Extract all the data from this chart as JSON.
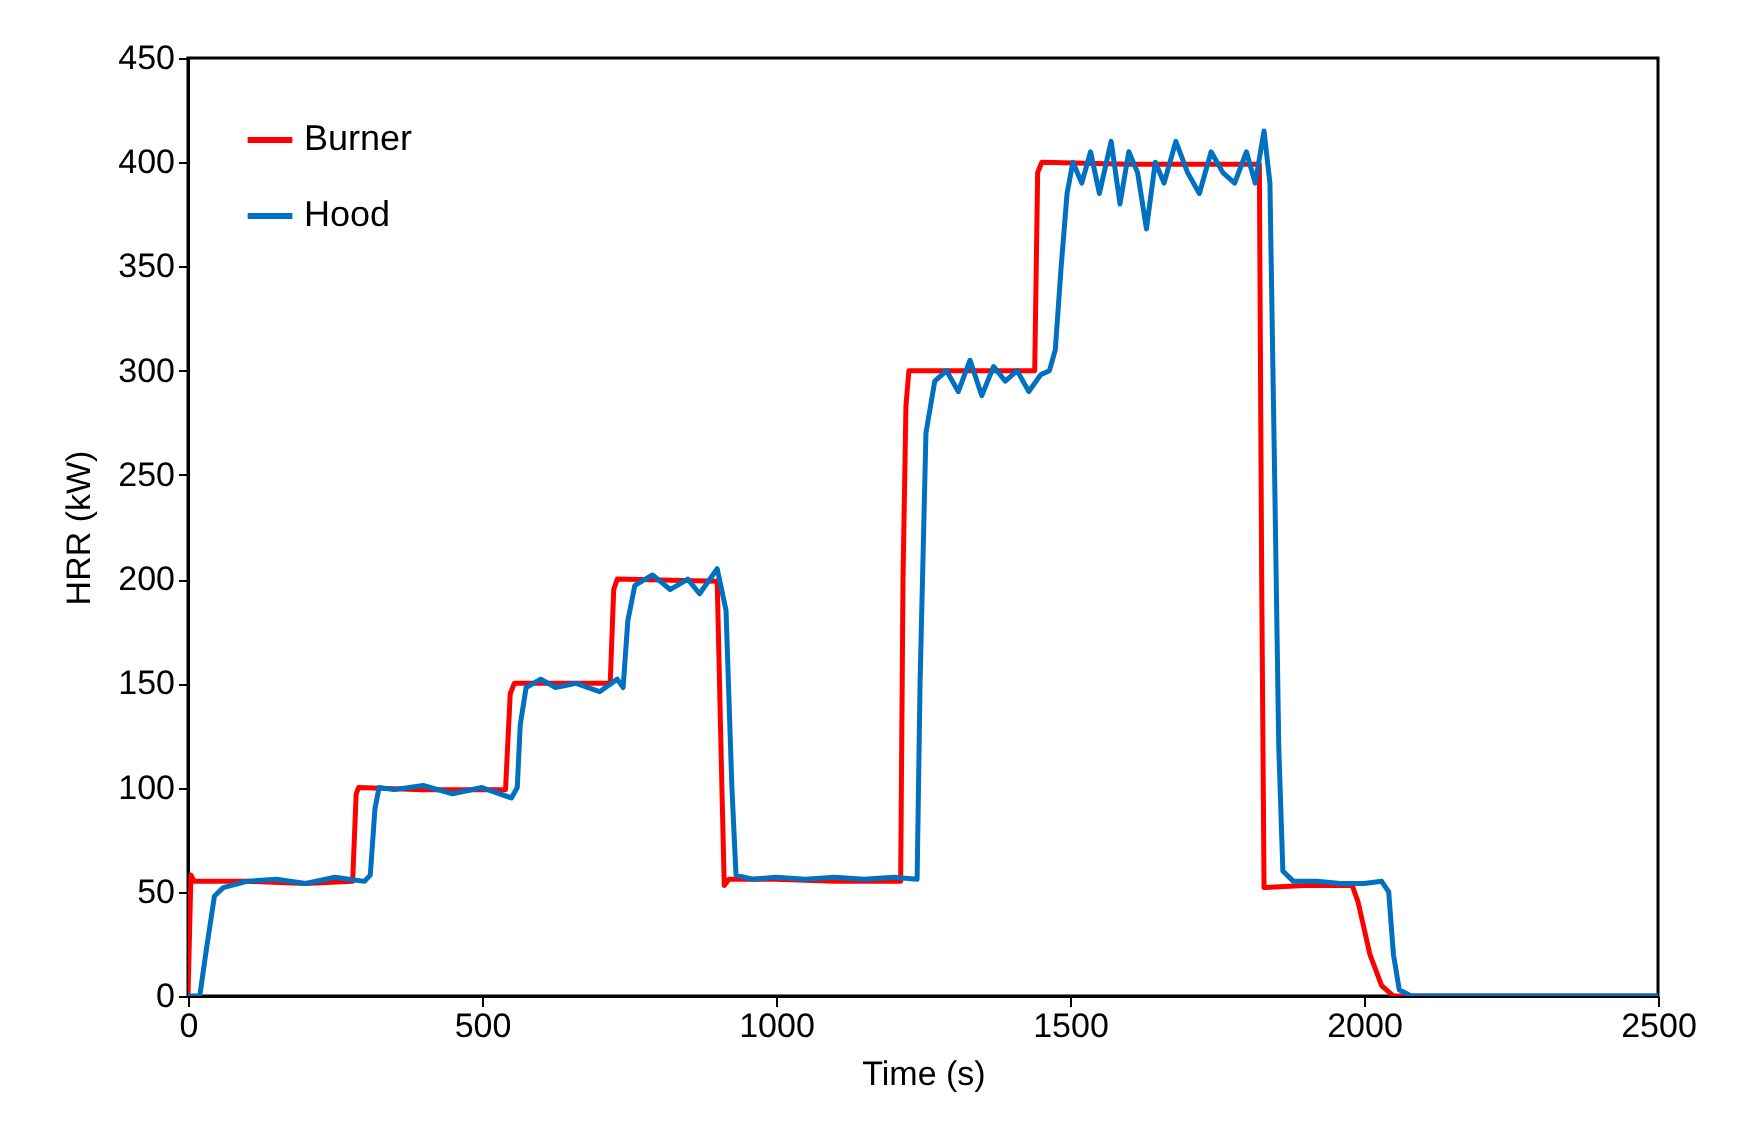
{
  "chart_data": {
    "type": "line",
    "xlabel": "Time (s)",
    "ylabel": "HRR (kW)",
    "xlim": [
      0,
      2500
    ],
    "ylim": [
      0,
      450
    ],
    "xticks": [
      0,
      500,
      1000,
      1500,
      2000,
      2500
    ],
    "yticks": [
      0,
      50,
      100,
      150,
      200,
      250,
      300,
      350,
      400,
      450
    ],
    "legend": "top left",
    "series": [
      {
        "name": "Burner",
        "color": "#ff0000",
        "x": [
          0,
          5,
          10,
          100,
          200,
          280,
          286,
          290,
          400,
          540,
          548,
          555,
          700,
          718,
          724,
          730,
          900,
          908,
          912,
          920,
          1000,
          1100,
          1212,
          1216,
          1221,
          1226,
          1300,
          1440,
          1445,
          1452,
          1600,
          1800,
          1822,
          1826,
          1830,
          1900,
          1980,
          1990,
          2010,
          2030,
          2050,
          2500
        ],
        "values": [
          0,
          58,
          55,
          55,
          54,
          55,
          97,
          100,
          99,
          99,
          145,
          150,
          150,
          150,
          195,
          200,
          199,
          100,
          53,
          56,
          56,
          55,
          55,
          200,
          283,
          300,
          300,
          300,
          395,
          400,
          399,
          399,
          399,
          200,
          52,
          53,
          53,
          45,
          20,
          5,
          0,
          0
        ]
      },
      {
        "name": "Hood",
        "color": "#0070c0",
        "x": [
          0,
          20,
          30,
          45,
          60,
          100,
          150,
          200,
          250,
          300,
          310,
          318,
          325,
          350,
          400,
          450,
          500,
          550,
          560,
          565,
          575,
          600,
          625,
          660,
          700,
          730,
          740,
          748,
          760,
          790,
          820,
          850,
          870,
          900,
          915,
          925,
          932,
          960,
          1000,
          1050,
          1100,
          1150,
          1200,
          1240,
          1245,
          1255,
          1270,
          1290,
          1310,
          1330,
          1350,
          1370,
          1390,
          1410,
          1430,
          1450,
          1465,
          1475,
          1485,
          1495,
          1505,
          1520,
          1535,
          1550,
          1570,
          1585,
          1600,
          1615,
          1630,
          1645,
          1660,
          1680,
          1700,
          1720,
          1740,
          1760,
          1780,
          1800,
          1815,
          1830,
          1840,
          1848,
          1855,
          1862,
          1880,
          1920,
          1960,
          2000,
          2030,
          2042,
          2050,
          2060,
          2080,
          2500
        ],
        "values": [
          0,
          0,
          20,
          48,
          52,
          55,
          56,
          54,
          57,
          55,
          58,
          90,
          100,
          99,
          101,
          97,
          100,
          95,
          100,
          130,
          148,
          152,
          148,
          150,
          146,
          152,
          148,
          180,
          197,
          202,
          195,
          200,
          193,
          205,
          185,
          100,
          58,
          56,
          57,
          56,
          57,
          56,
          57,
          56,
          150,
          270,
          295,
          300,
          290,
          305,
          288,
          302,
          295,
          300,
          290,
          298,
          300,
          310,
          350,
          385,
          400,
          390,
          405,
          385,
          410,
          380,
          405,
          395,
          368,
          400,
          390,
          410,
          395,
          385,
          405,
          395,
          390,
          405,
          390,
          415,
          390,
          250,
          120,
          60,
          55,
          55,
          54,
          54,
          55,
          50,
          20,
          3,
          0,
          0
        ]
      }
    ]
  }
}
